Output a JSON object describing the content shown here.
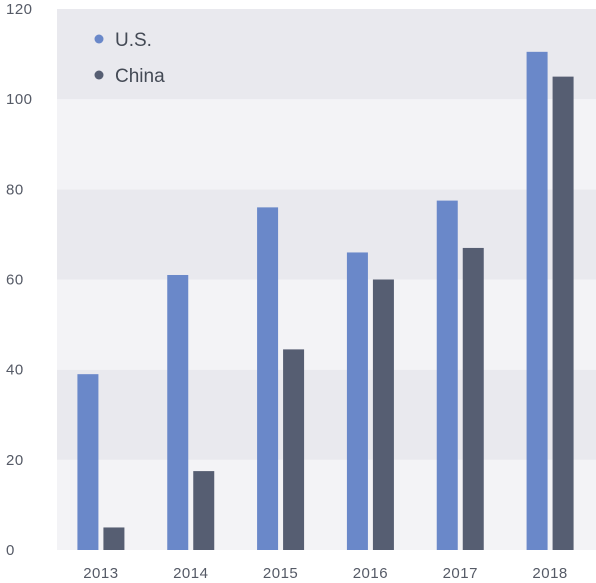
{
  "chart_data": {
    "type": "bar",
    "categories": [
      "2013",
      "2014",
      "2015",
      "2016",
      "2017",
      "2018"
    ],
    "series": [
      {
        "name": "U.S.",
        "values": [
          39,
          61,
          76,
          66,
          77.5,
          110.5
        ]
      },
      {
        "name": "China",
        "values": [
          5,
          17.5,
          44.5,
          60,
          67,
          105
        ]
      }
    ],
    "ylim": [
      0,
      120
    ],
    "yticks": [
      "0",
      "20",
      "40",
      "60",
      "80",
      "100",
      "120"
    ],
    "title": "",
    "xlabel": "",
    "ylabel": "",
    "grid": "alternating horizontal bands",
    "legend": "top-left",
    "colors": {
      "U.S.": "#6a88c9",
      "China": "#565e72",
      "band_dark": "#e9e9ee",
      "band_light": "#f3f3f6",
      "tick_text": "#555a66"
    }
  }
}
